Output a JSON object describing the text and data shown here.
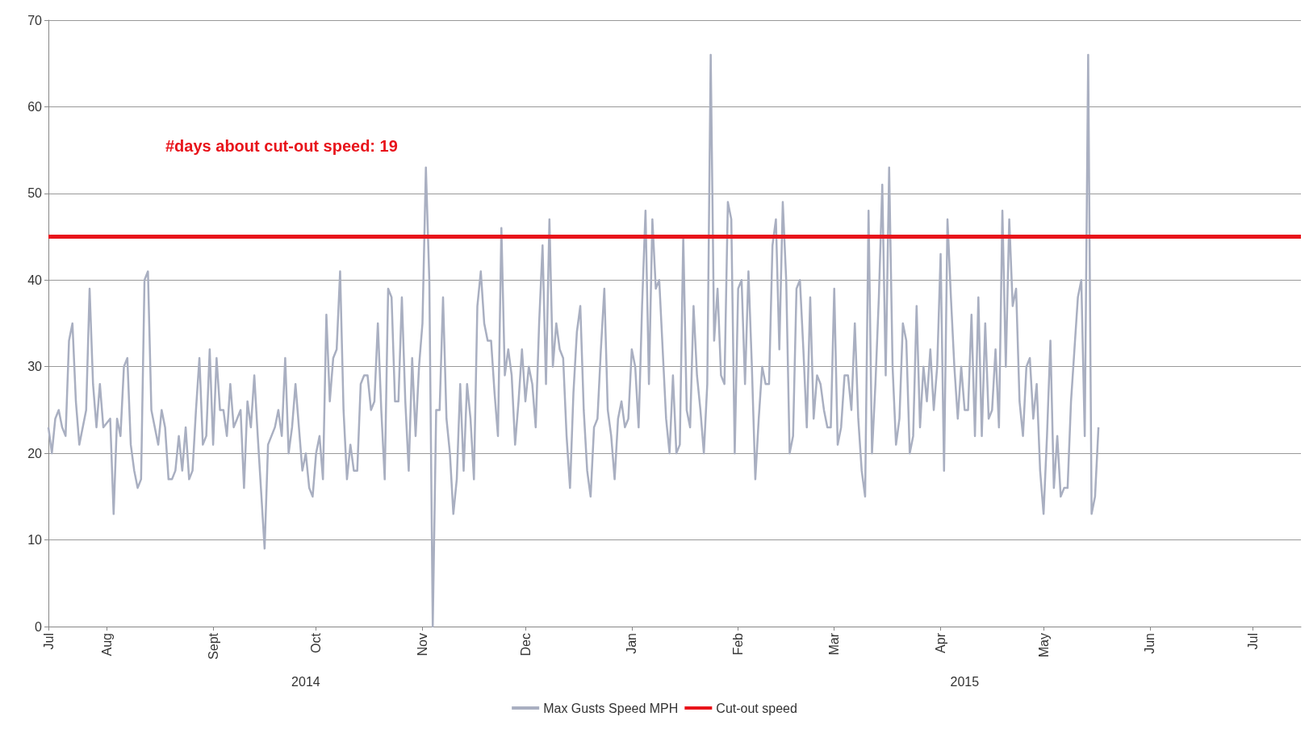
{
  "chart_data": {
    "type": "line",
    "xlim": [
      "2014-07-15",
      "2015-07-15"
    ],
    "xticks": [
      {
        "value": "2014-07-15",
        "label": "Jul"
      },
      {
        "value": "2014-08-01",
        "label": "Aug"
      },
      {
        "value": "2014-09-01",
        "label": "Sept"
      },
      {
        "value": "2014-10-01",
        "label": "Oct"
      },
      {
        "value": "2014-11-01",
        "label": "Nov"
      },
      {
        "value": "2014-12-01",
        "label": "Dec"
      },
      {
        "value": "2015-01-01",
        "label": "Jan"
      },
      {
        "value": "2015-02-01",
        "label": "Feb"
      },
      {
        "value": "2015-03-01",
        "label": "Mar"
      },
      {
        "value": "2015-04-01",
        "label": "Apr"
      },
      {
        "value": "2015-05-01",
        "label": "May"
      },
      {
        "value": "2015-06-01",
        "label": "Jun"
      },
      {
        "value": "2015-07-01",
        "label": "Jul"
      }
    ],
    "x2lim": [
      "2014-07-15",
      "2015-07-15"
    ],
    "x2ticks": [
      {
        "value": "2014-09-28",
        "label": "2014"
      },
      {
        "value": "2015-04-08",
        "label": "2015"
      }
    ],
    "ylim": [
      0,
      70
    ],
    "yticks": [
      0,
      10,
      20,
      30,
      40,
      50,
      60,
      70
    ],
    "grid": "y",
    "legend": "bottom",
    "marker": "none",
    "line_style": "solid",
    "annotations": [
      "#days about cut-out speed: 19"
    ],
    "ref_lines": [
      {
        "axis": "y",
        "value": 45,
        "label": "Cut-out speed",
        "color": "#e8141b"
      }
    ],
    "series": [
      {
        "name": "Max Gusts Speed MPH",
        "color": "#a9afc1",
        "x": [
          "2014-07-15",
          "2014-07-16",
          "2014-07-17",
          "2014-07-18",
          "2014-07-19",
          "2014-07-20",
          "2014-07-21",
          "2014-07-22",
          "2014-07-23",
          "2014-07-24",
          "2014-07-26",
          "2014-07-27",
          "2014-07-28",
          "2014-07-29",
          "2014-07-30",
          "2014-07-31",
          "2014-08-02",
          "2014-08-03",
          "2014-08-04",
          "2014-08-05",
          "2014-08-06",
          "2014-08-07",
          "2014-08-08",
          "2014-08-09",
          "2014-08-10",
          "2014-08-11",
          "2014-08-12",
          "2014-08-13",
          "2014-08-14",
          "2014-08-15",
          "2014-08-16",
          "2014-08-17",
          "2014-08-18",
          "2014-08-19",
          "2014-08-20",
          "2014-08-21",
          "2014-08-22",
          "2014-08-23",
          "2014-08-24",
          "2014-08-25",
          "2014-08-26",
          "2014-08-27",
          "2014-08-28",
          "2014-08-29",
          "2014-08-30",
          "2014-08-31",
          "2014-09-01",
          "2014-09-02",
          "2014-09-03",
          "2014-09-04",
          "2014-09-05",
          "2014-09-06",
          "2014-09-07",
          "2014-09-08",
          "2014-09-09",
          "2014-09-10",
          "2014-09-11",
          "2014-09-12",
          "2014-09-13",
          "2014-09-14",
          "2014-09-16",
          "2014-09-17",
          "2014-09-18",
          "2014-09-19",
          "2014-09-20",
          "2014-09-21",
          "2014-09-22",
          "2014-09-23",
          "2014-09-24",
          "2014-09-25",
          "2014-09-26",
          "2014-09-27",
          "2014-09-28",
          "2014-09-29",
          "2014-09-30",
          "2014-10-01",
          "2014-10-02",
          "2014-10-03",
          "2014-10-04",
          "2014-10-05",
          "2014-10-06",
          "2014-10-07",
          "2014-10-08",
          "2014-10-09",
          "2014-10-10",
          "2014-10-11",
          "2014-10-12",
          "2014-10-13",
          "2014-10-14",
          "2014-10-15",
          "2014-10-16",
          "2014-10-17",
          "2014-10-18",
          "2014-10-19",
          "2014-10-20",
          "2014-10-21",
          "2014-10-22",
          "2014-10-23",
          "2014-10-24",
          "2014-10-25",
          "2014-10-26",
          "2014-10-27",
          "2014-10-28",
          "2014-10-29",
          "2014-10-30",
          "2014-10-31",
          "2014-11-01",
          "2014-11-02",
          "2014-11-03",
          "2014-11-04",
          "2014-11-05",
          "2014-11-06",
          "2014-11-07",
          "2014-11-08",
          "2014-11-09",
          "2014-11-10",
          "2014-11-11",
          "2014-11-12",
          "2014-11-13",
          "2014-11-14",
          "2014-11-15",
          "2014-11-16",
          "2014-11-17",
          "2014-11-18",
          "2014-11-19",
          "2014-11-20",
          "2014-11-21",
          "2014-11-22",
          "2014-11-23",
          "2014-11-24",
          "2014-11-25",
          "2014-11-26",
          "2014-11-27",
          "2014-11-28",
          "2014-11-29",
          "2014-11-30",
          "2014-12-01",
          "2014-12-02",
          "2014-12-03",
          "2014-12-04",
          "2014-12-05",
          "2014-12-06",
          "2014-12-07",
          "2014-12-08",
          "2014-12-09",
          "2014-12-10",
          "2014-12-11",
          "2014-12-12",
          "2014-12-13",
          "2014-12-14",
          "2014-12-15",
          "2014-12-16",
          "2014-12-17",
          "2014-12-18",
          "2014-12-19",
          "2014-12-20",
          "2014-12-21",
          "2014-12-22",
          "2014-12-23",
          "2014-12-24",
          "2014-12-25",
          "2014-12-26",
          "2014-12-27",
          "2014-12-28",
          "2014-12-29",
          "2014-12-30",
          "2014-12-31",
          "2015-01-01",
          "2015-01-02",
          "2015-01-03",
          "2015-01-04",
          "2015-01-05",
          "2015-01-06",
          "2015-01-07",
          "2015-01-08",
          "2015-01-09",
          "2015-01-10",
          "2015-01-11",
          "2015-01-12",
          "2015-01-13",
          "2015-01-14",
          "2015-01-15",
          "2015-01-16",
          "2015-01-17",
          "2015-01-18",
          "2015-01-19",
          "2015-01-20",
          "2015-01-21",
          "2015-01-22",
          "2015-01-23",
          "2015-01-24",
          "2015-01-25",
          "2015-01-26",
          "2015-01-27",
          "2015-01-28",
          "2015-01-29",
          "2015-01-30",
          "2015-01-31",
          "2015-02-01",
          "2015-02-02",
          "2015-02-03",
          "2015-02-04",
          "2015-02-05",
          "2015-02-06",
          "2015-02-07",
          "2015-02-08",
          "2015-02-09",
          "2015-02-10",
          "2015-02-11",
          "2015-02-12",
          "2015-02-13",
          "2015-02-14",
          "2015-02-15",
          "2015-02-16",
          "2015-02-17",
          "2015-02-18",
          "2015-02-19",
          "2015-02-20",
          "2015-02-21",
          "2015-02-22",
          "2015-02-23",
          "2015-02-24",
          "2015-02-25",
          "2015-02-26",
          "2015-02-27",
          "2015-02-28",
          "2015-03-01",
          "2015-03-02",
          "2015-03-03",
          "2015-03-04",
          "2015-03-05",
          "2015-03-06",
          "2015-03-07",
          "2015-03-08",
          "2015-03-09",
          "2015-03-10",
          "2015-03-11",
          "2015-03-12",
          "2015-03-13",
          "2015-03-14",
          "2015-03-15",
          "2015-03-16",
          "2015-03-17",
          "2015-03-18",
          "2015-03-19",
          "2015-03-20",
          "2015-03-21",
          "2015-03-22",
          "2015-03-23",
          "2015-03-24",
          "2015-03-25",
          "2015-03-26",
          "2015-03-27",
          "2015-03-28",
          "2015-03-29",
          "2015-03-30",
          "2015-03-31",
          "2015-04-01",
          "2015-04-02",
          "2015-04-03",
          "2015-04-04",
          "2015-04-05",
          "2015-04-06",
          "2015-04-07",
          "2015-04-08",
          "2015-04-09",
          "2015-04-10",
          "2015-04-11",
          "2015-04-12",
          "2015-04-13",
          "2015-04-14",
          "2015-04-15",
          "2015-04-16",
          "2015-04-17",
          "2015-04-18",
          "2015-04-19",
          "2015-04-20",
          "2015-04-21",
          "2015-04-22",
          "2015-04-23",
          "2015-04-24",
          "2015-04-25",
          "2015-04-26",
          "2015-04-27",
          "2015-04-28",
          "2015-04-29",
          "2015-04-30",
          "2015-05-01",
          "2015-05-02",
          "2015-05-03",
          "2015-05-04",
          "2015-05-05",
          "2015-05-06",
          "2015-05-07",
          "2015-05-08",
          "2015-05-09",
          "2015-05-10",
          "2015-05-11",
          "2015-05-12",
          "2015-05-13",
          "2015-05-14",
          "2015-05-15",
          "2015-05-16",
          "2015-05-17"
        ],
        "values": [
          23,
          20,
          24,
          25,
          23,
          22,
          33,
          35,
          26,
          21,
          25,
          39,
          28,
          23,
          28,
          23,
          24,
          13,
          24,
          22,
          30,
          31,
          21,
          18,
          16,
          17,
          40,
          41,
          25,
          23,
          21,
          25,
          23,
          17,
          17,
          18,
          22,
          18,
          23,
          17,
          18,
          25,
          31,
          21,
          22,
          32,
          21,
          31,
          25,
          25,
          22,
          28,
          23,
          24,
          25,
          16,
          26,
          23,
          29,
          22,
          9,
          21,
          22,
          23,
          25,
          22,
          31,
          20,
          23,
          28,
          23,
          18,
          20,
          16,
          15,
          20,
          22,
          17,
          36,
          26,
          31,
          32,
          41,
          25,
          17,
          21,
          18,
          18,
          28,
          29,
          29,
          25,
          26,
          35,
          25,
          17,
          39,
          38,
          26,
          26,
          38,
          26,
          18,
          31,
          22,
          30,
          35,
          53,
          40,
          0,
          25,
          25,
          38,
          24,
          20,
          13,
          17,
          28,
          18,
          28,
          24,
          17,
          37,
          41,
          35,
          33,
          33,
          27,
          22,
          46,
          29,
          32,
          29,
          21,
          26,
          32,
          26,
          30,
          28,
          23,
          35,
          44,
          28,
          47,
          30,
          35,
          32,
          31,
          22,
          16,
          27,
          34,
          37,
          25,
          18,
          15,
          23,
          24,
          32,
          39,
          25,
          22,
          17,
          24,
          26,
          23,
          24,
          32,
          30,
          23,
          37,
          48,
          28,
          47,
          39,
          40,
          32,
          24,
          20,
          29,
          20,
          21,
          45,
          25,
          23,
          37,
          29,
          25,
          20,
          28,
          66,
          33,
          39,
          29,
          28,
          49,
          47,
          20,
          39,
          40,
          28,
          41,
          30,
          17,
          24,
          30,
          28,
          28,
          44,
          47,
          32,
          49,
          40,
          20,
          22,
          39,
          40,
          32,
          23,
          38,
          24,
          29,
          28,
          25,
          23,
          23,
          39,
          21,
          23,
          29,
          29,
          25,
          35,
          24,
          18,
          15,
          48,
          20,
          28,
          38,
          51,
          29,
          53,
          30,
          21,
          24,
          35,
          33,
          20,
          22,
          37,
          23,
          30,
          26,
          32,
          25,
          30,
          43,
          18,
          47,
          38,
          30,
          24,
          30,
          25,
          25,
          36,
          22,
          38,
          22,
          35,
          24,
          25,
          32,
          23,
          48,
          30,
          47,
          37,
          39,
          26,
          22,
          30,
          31,
          24,
          28,
          18,
          13,
          22,
          33,
          16,
          22,
          15,
          16,
          16,
          26,
          32,
          38,
          40,
          22,
          66,
          13,
          15,
          23
        ]
      }
    ]
  }
}
